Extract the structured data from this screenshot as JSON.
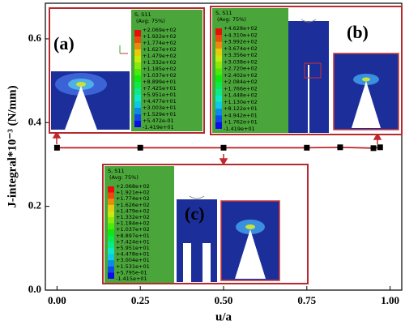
{
  "chart_data": {
    "type": "line",
    "x_label": "u/a",
    "y_label": "J-integral*10⁻³ (N/mm)",
    "x": [
      0,
      0.25,
      0.5,
      0.75,
      0.85,
      0.95,
      0.97
    ],
    "values": [
      0.34,
      0.34,
      0.34,
      0.34,
      0.341,
      0.339,
      0.341
    ],
    "color": "#c0282d",
    "marker_color": "#000000",
    "xlim": [
      -0.035,
      1.035
    ],
    "ylim": [
      0,
      0.685
    ],
    "xticks": [
      {
        "value": 0,
        "label": "0.00"
      },
      {
        "value": 0.25,
        "label": "0.25"
      },
      {
        "value": 0.5,
        "label": "0.50"
      },
      {
        "value": 0.75,
        "label": "0.75"
      },
      {
        "value": 1,
        "label": "1.00"
      }
    ],
    "yticks": [
      {
        "value": 0,
        "label": "0.0"
      },
      {
        "value": 0.2,
        "label": "0.2"
      },
      {
        "value": 0.4,
        "label": "0.4"
      },
      {
        "value": 0.6,
        "label": "0.6"
      }
    ],
    "insets": [
      {
        "label": "(a)",
        "legend_title": "S, S11",
        "legend_subtitle": "(Avg: 75%)",
        "legend_values": [
          "+2.069e+02",
          "+1.922e+02",
          "+1.774e+02",
          "+1.627e+02",
          "+1.479e+02",
          "+1.332e+02",
          "+1.185e+02",
          "+1.037e+02",
          "+8.899e+01",
          "+7.425e+01",
          "+5.951e+01",
          "+4.477e+01",
          "+3.003e+01",
          "+1.529e+01",
          "+5.472e-01",
          "-1.419e+01"
        ]
      },
      {
        "label": "(b)",
        "legend_title": "S, S11",
        "legend_subtitle": "(Avg: 75%)",
        "legend_values": [
          "+4.628e+02",
          "+4.310e+02",
          "+3.992e+02",
          "+3.674e+02",
          "+3.356e+02",
          "+3.038e+02",
          "+2.720e+02",
          "+2.402e+02",
          "+2.084e+02",
          "+1.766e+02",
          "+1.448e+02",
          "+1.130e+02",
          "+8.122e+01",
          "+4.942e+01",
          "+1.762e+01",
          "-1.419e+01"
        ]
      },
      {
        "label": "(c)",
        "legend_title": "S, S11",
        "legend_subtitle": "(Avg: 75%)",
        "legend_values": [
          "+2.068e+02",
          "+1.921e+02",
          "+1.774e+02",
          "+1.626e+02",
          "+1.479e+02",
          "+1.332e+02",
          "+1.184e+02",
          "+1.037e+02",
          "+8.897e+01",
          "+7.424e+01",
          "+5.951e+01",
          "+4.478e+01",
          "+3.004e+01",
          "+1.531e+01",
          "+5.795e-01",
          "-1.415e+01"
        ]
      }
    ]
  }
}
